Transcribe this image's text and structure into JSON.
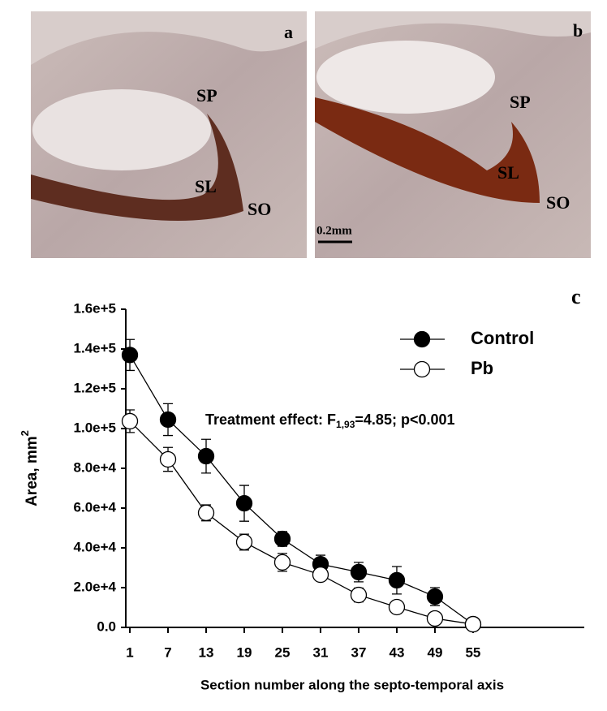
{
  "panels": [
    {
      "letter": "a",
      "regions": [
        "SP",
        "SL",
        "SO"
      ]
    },
    {
      "letter": "b",
      "regions": [
        "SP",
        "SL",
        "SO"
      ],
      "scale": "0.2mm"
    }
  ],
  "chart_data": {
    "type": "line",
    "panel": "c",
    "x_label": "Section number along the septo-temporal axis",
    "y_label": {
      "text": "Area, mm",
      "sup": "2"
    },
    "annotation": {
      "prefix": "Treatment effect: F",
      "sub": "1,93",
      "suffix": "=4.85; p<0.001"
    },
    "x": [
      1,
      7,
      13,
      19,
      25,
      31,
      37,
      43,
      49,
      55
    ],
    "series": [
      {
        "name": "Control",
        "color": "#000000",
        "values": [
          137000,
          104500,
          86100,
          62400,
          44500,
          31800,
          27800,
          23700,
          15500,
          1600
        ],
        "errors": [
          7800,
          8000,
          8500,
          9000,
          3700,
          4500,
          4900,
          6900,
          4500,
          500
        ]
      },
      {
        "name": "Pb",
        "color": "#ffffff",
        "values": [
          103700,
          84500,
          57600,
          42900,
          32700,
          26500,
          16300,
          10200,
          4500,
          1600
        ],
        "errors": [
          5700,
          6000,
          4000,
          4000,
          4500,
          3000,
          3500,
          2000,
          1500,
          500
        ]
      }
    ],
    "xlim": [
      -0.28,
      72.5
    ],
    "ylim": [
      0,
      160000
    ],
    "xticks": [
      1,
      7,
      13,
      19,
      25,
      31,
      37,
      43,
      49,
      55
    ],
    "yticks": [
      {
        "value": 0,
        "label": "0.0"
      },
      {
        "value": 20000,
        "label": "2.0e+4"
      },
      {
        "value": 40000,
        "label": "4.0e+4"
      },
      {
        "value": 60000,
        "label": "6.0e+4"
      },
      {
        "value": 80000,
        "label": "8.0e+4"
      },
      {
        "value": 100000,
        "label": "1.0e+5"
      },
      {
        "value": 120000,
        "label": "1.2e+5"
      },
      {
        "value": 140000,
        "label": "1.4e+5"
      },
      {
        "value": 160000,
        "label": "1.6e+5"
      }
    ],
    "legend": "top-right",
    "grid": false
  }
}
